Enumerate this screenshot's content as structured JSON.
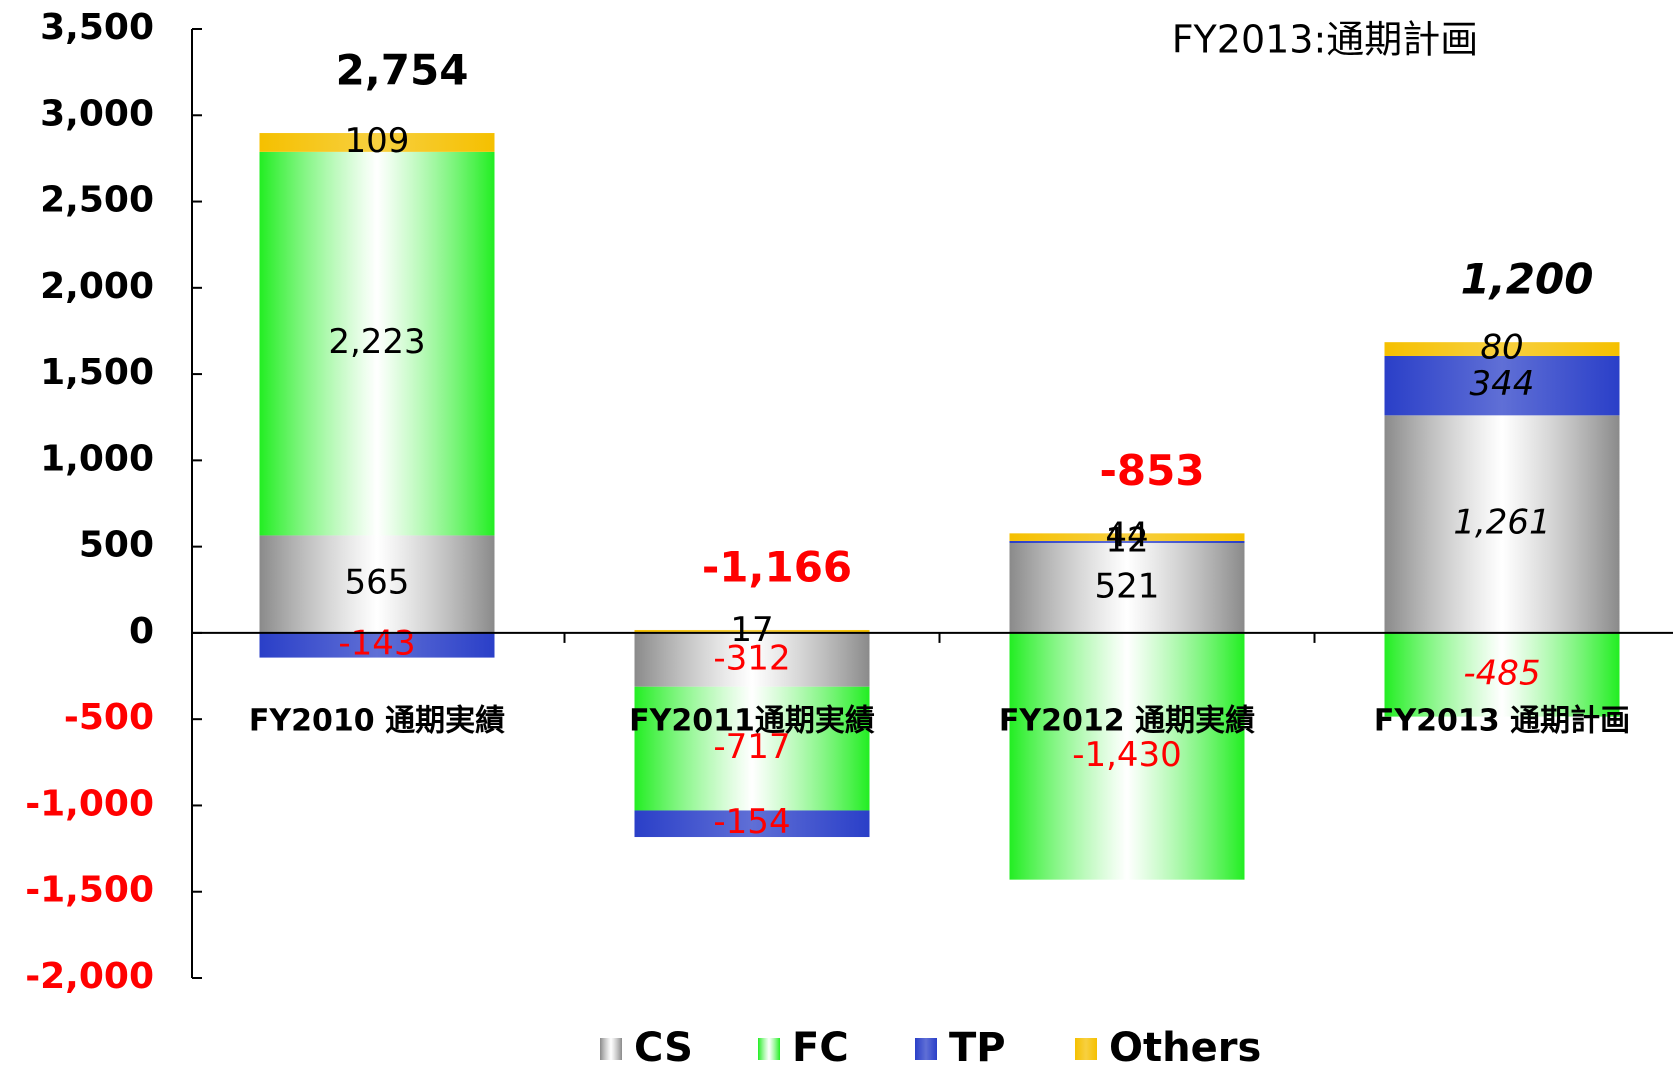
{
  "chart_data": {
    "type": "stacked_bar",
    "annotation": "FY2013:通期計画",
    "categories": [
      "FY2010 通期実績",
      "FY2011通期実績",
      "FY2012 通期実績",
      "FY2013 通期計画"
    ],
    "series": [
      {
        "name": "CS",
        "color": "#8a8a8a",
        "values": [
          565,
          -312,
          521,
          1261
        ],
        "value_labels": [
          "565",
          "-312",
          "521",
          "1,261"
        ]
      },
      {
        "name": "FC",
        "color": "#22ee22",
        "values": [
          2223,
          -717,
          -1430,
          -485
        ],
        "value_labels": [
          "2,223",
          "-717",
          "-1,430",
          "-485"
        ]
      },
      {
        "name": "TP",
        "color": "#2a3fc8",
        "values": [
          -143,
          -154,
          12,
          344
        ],
        "value_labels": [
          "-143",
          "-154",
          "12",
          "344"
        ]
      },
      {
        "name": "Others",
        "color": "#f5c000",
        "values": [
          109,
          17,
          44,
          80
        ],
        "value_labels": [
          "109",
          "17",
          "44",
          "80"
        ]
      }
    ],
    "totals": [
      2754,
      -1166,
      -853,
      1200
    ],
    "total_labels": [
      "2,754",
      "-1,166",
      "-853",
      "1,200"
    ],
    "negative_color": "#ff0000",
    "ylim": [
      -2000,
      3500
    ],
    "yticks": [
      {
        "value": -2000,
        "label": "-2,000"
      },
      {
        "value": -1500,
        "label": "-1,500"
      },
      {
        "value": -1000,
        "label": "-1,000"
      },
      {
        "value": -500,
        "label": "-500"
      },
      0,
      500,
      {
        "value": 1000,
        "label": "1,000"
      },
      {
        "value": 1500,
        "label": "1,500"
      },
      {
        "value": 2000,
        "label": "2,000"
      },
      {
        "value": 2500,
        "label": "2,500"
      },
      {
        "value": 3000,
        "label": "3,000"
      },
      {
        "value": 3500,
        "label": "3,500"
      }
    ],
    "legend": "bottom"
  }
}
